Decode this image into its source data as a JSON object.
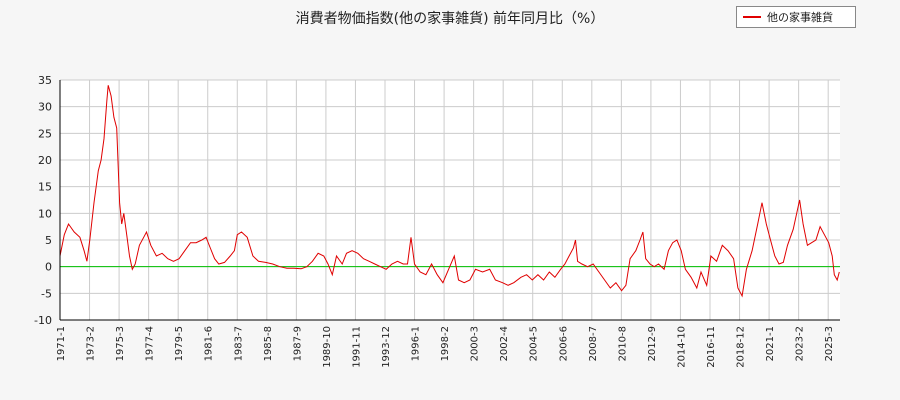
{
  "chart_data": {
    "type": "line",
    "title": "消費者物価指数(他の家事雑貨) 前年同月比（%）",
    "legend": "top-right",
    "grid": true,
    "series": [
      {
        "name": "他の家事雑貨",
        "color": "#e00000",
        "points": [
          [
            1971.0,
            2.0
          ],
          [
            1971.3,
            6.0
          ],
          [
            1971.6,
            8.0
          ],
          [
            1972.0,
            6.5
          ],
          [
            1972.4,
            5.5
          ],
          [
            1972.7,
            3.0
          ],
          [
            1972.9,
            1.0
          ],
          [
            1973.1,
            5.0
          ],
          [
            1973.4,
            12.0
          ],
          [
            1973.7,
            18.0
          ],
          [
            1973.9,
            20.0
          ],
          [
            1974.1,
            24.0
          ],
          [
            1974.3,
            31.0
          ],
          [
            1974.4,
            34.0
          ],
          [
            1974.6,
            32.0
          ],
          [
            1974.8,
            28.0
          ],
          [
            1975.0,
            26.0
          ],
          [
            1975.2,
            12.0
          ],
          [
            1975.35,
            8.0
          ],
          [
            1975.5,
            10.0
          ],
          [
            1975.7,
            6.0
          ],
          [
            1975.9,
            2.0
          ],
          [
            1976.1,
            -0.5
          ],
          [
            1976.3,
            0.5
          ],
          [
            1976.6,
            4.0
          ],
          [
            1976.9,
            5.5
          ],
          [
            1977.1,
            6.5
          ],
          [
            1977.4,
            4.0
          ],
          [
            1977.8,
            2.0
          ],
          [
            1978.2,
            2.5
          ],
          [
            1978.6,
            1.5
          ],
          [
            1979.0,
            1.0
          ],
          [
            1979.4,
            1.5
          ],
          [
            1979.8,
            3.0
          ],
          [
            1980.2,
            4.5
          ],
          [
            1980.6,
            4.5
          ],
          [
            1981.0,
            5.0
          ],
          [
            1981.3,
            5.5
          ],
          [
            1981.6,
            3.5
          ],
          [
            1981.9,
            1.5
          ],
          [
            1982.2,
            0.5
          ],
          [
            1982.6,
            0.8
          ],
          [
            1983.0,
            2.0
          ],
          [
            1983.3,
            3.0
          ],
          [
            1983.5,
            6.0
          ],
          [
            1983.8,
            6.5
          ],
          [
            1984.2,
            5.5
          ],
          [
            1984.6,
            2.0
          ],
          [
            1985.0,
            1.0
          ],
          [
            1985.5,
            0.8
          ],
          [
            1986.0,
            0.5
          ],
          [
            1986.5,
            0.0
          ],
          [
            1987.0,
            -0.3
          ],
          [
            1987.5,
            -0.3
          ],
          [
            1988.0,
            -0.4
          ],
          [
            1988.4,
            0.0
          ],
          [
            1988.8,
            1.0
          ],
          [
            1989.2,
            2.5
          ],
          [
            1989.6,
            2.0
          ],
          [
            1989.9,
            0.5
          ],
          [
            1990.2,
            -1.5
          ],
          [
            1990.5,
            2.0
          ],
          [
            1990.9,
            0.5
          ],
          [
            1991.2,
            2.5
          ],
          [
            1991.6,
            3.0
          ],
          [
            1992.0,
            2.5
          ],
          [
            1992.4,
            1.5
          ],
          [
            1992.8,
            1.0
          ],
          [
            1993.2,
            0.5
          ],
          [
            1993.6,
            0.0
          ],
          [
            1994.0,
            -0.5
          ],
          [
            1994.4,
            0.5
          ],
          [
            1994.8,
            1.0
          ],
          [
            1995.2,
            0.5
          ],
          [
            1995.5,
            0.5
          ],
          [
            1995.75,
            5.5
          ],
          [
            1996.0,
            0.5
          ],
          [
            1996.4,
            -1.0
          ],
          [
            1996.8,
            -1.5
          ],
          [
            1997.2,
            0.5
          ],
          [
            1997.6,
            -1.5
          ],
          [
            1998.0,
            -3.0
          ],
          [
            1998.4,
            -0.5
          ],
          [
            1998.8,
            2.0
          ],
          [
            1999.1,
            -2.5
          ],
          [
            1999.5,
            -3.0
          ],
          [
            1999.9,
            -2.5
          ],
          [
            2000.3,
            -0.5
          ],
          [
            2000.8,
            -1.0
          ],
          [
            2001.3,
            -0.5
          ],
          [
            2001.7,
            -2.5
          ],
          [
            2002.2,
            -3.0
          ],
          [
            2002.6,
            -3.5
          ],
          [
            2003.0,
            -3.0
          ],
          [
            2003.5,
            -2.0
          ],
          [
            2003.9,
            -1.5
          ],
          [
            2004.3,
            -2.5
          ],
          [
            2004.7,
            -1.5
          ],
          [
            2005.1,
            -2.5
          ],
          [
            2005.5,
            -1.0
          ],
          [
            2005.9,
            -2.0
          ],
          [
            2006.3,
            -0.5
          ],
          [
            2006.6,
            0.5
          ],
          [
            2006.9,
            2.0
          ],
          [
            2007.2,
            3.5
          ],
          [
            2007.35,
            5.0
          ],
          [
            2007.5,
            1.0
          ],
          [
            2007.8,
            0.5
          ],
          [
            2008.2,
            0.0
          ],
          [
            2008.6,
            0.5
          ],
          [
            2009.0,
            -1.0
          ],
          [
            2009.4,
            -2.5
          ],
          [
            2009.8,
            -4.0
          ],
          [
            2010.2,
            -3.0
          ],
          [
            2010.6,
            -4.5
          ],
          [
            2010.9,
            -3.5
          ],
          [
            2011.2,
            1.5
          ],
          [
            2011.6,
            3.0
          ],
          [
            2011.9,
            5.0
          ],
          [
            2012.1,
            6.5
          ],
          [
            2012.3,
            1.5
          ],
          [
            2012.6,
            0.5
          ],
          [
            2012.9,
            0.0
          ],
          [
            2013.2,
            0.5
          ],
          [
            2013.6,
            -0.5
          ],
          [
            2013.9,
            3.0
          ],
          [
            2014.2,
            4.5
          ],
          [
            2014.5,
            5.0
          ],
          [
            2014.8,
            3.0
          ],
          [
            2015.1,
            -0.5
          ],
          [
            2015.5,
            -2.0
          ],
          [
            2015.9,
            -4.0
          ],
          [
            2016.2,
            -1.0
          ],
          [
            2016.6,
            -3.5
          ],
          [
            2016.9,
            2.0
          ],
          [
            2017.3,
            1.0
          ],
          [
            2017.7,
            4.0
          ],
          [
            2018.1,
            3.0
          ],
          [
            2018.5,
            1.5
          ],
          [
            2018.8,
            -4.0
          ],
          [
            2019.1,
            -5.5
          ],
          [
            2019.4,
            -0.5
          ],
          [
            2019.8,
            3.0
          ],
          [
            2020.2,
            8.0
          ],
          [
            2020.5,
            12.0
          ],
          [
            2020.8,
            8.0
          ],
          [
            2021.1,
            5.0
          ],
          [
            2021.4,
            2.0
          ],
          [
            2021.7,
            0.5
          ],
          [
            2022.0,
            0.8
          ],
          [
            2022.3,
            4.0
          ],
          [
            2022.7,
            7.0
          ],
          [
            2022.95,
            10.0
          ],
          [
            2023.15,
            12.5
          ],
          [
            2023.4,
            8.0
          ],
          [
            2023.7,
            4.0
          ],
          [
            2024.0,
            4.5
          ],
          [
            2024.3,
            5.0
          ],
          [
            2024.6,
            7.5
          ],
          [
            2024.9,
            6.0
          ],
          [
            2025.2,
            4.5
          ],
          [
            2025.45,
            2.0
          ],
          [
            2025.6,
            -1.5
          ],
          [
            2025.8,
            -2.5
          ],
          [
            2025.95,
            -1.0
          ]
        ]
      }
    ],
    "ylim": [
      -10,
      35
    ],
    "yticks": [
      35,
      30,
      25,
      20,
      15,
      10,
      5,
      0,
      -5,
      -10
    ],
    "xlim": [
      1971.0,
      2026.0
    ],
    "xticks": [
      {
        "label": "1971-1",
        "x": 1971.0
      },
      {
        "label": "1973-2",
        "x": 1973.083
      },
      {
        "label": "1975-3",
        "x": 1975.167
      },
      {
        "label": "1977-4",
        "x": 1977.25
      },
      {
        "label": "1979-5",
        "x": 1979.333
      },
      {
        "label": "1981-6",
        "x": 1981.417
      },
      {
        "label": "1983-7",
        "x": 1983.5
      },
      {
        "label": "1985-8",
        "x": 1985.583
      },
      {
        "label": "1987-9",
        "x": 1987.667
      },
      {
        "label": "1989-10",
        "x": 1989.75
      },
      {
        "label": "1991-11",
        "x": 1991.833
      },
      {
        "label": "1993-12",
        "x": 1993.917
      },
      {
        "label": "1996-1",
        "x": 1996.0
      },
      {
        "label": "1998-2",
        "x": 1998.083
      },
      {
        "label": "2000-3",
        "x": 2000.167
      },
      {
        "label": "2002-4",
        "x": 2002.25
      },
      {
        "label": "2004-5",
        "x": 2004.333
      },
      {
        "label": "2006-6",
        "x": 2006.417
      },
      {
        "label": "2008-7",
        "x": 2008.5
      },
      {
        "label": "2010-8",
        "x": 2010.583
      },
      {
        "label": "2012-9",
        "x": 2012.667
      },
      {
        "label": "2014-10",
        "x": 2014.75
      },
      {
        "label": "2016-11",
        "x": 2016.833
      },
      {
        "label": "2018-12",
        "x": 2018.917
      },
      {
        "label": "2021-1",
        "x": 2021.0
      },
      {
        "label": "2023-2",
        "x": 2023.083
      },
      {
        "label": "2025-3",
        "x": 2025.167
      }
    ],
    "zero_line_color": "#00c000"
  }
}
